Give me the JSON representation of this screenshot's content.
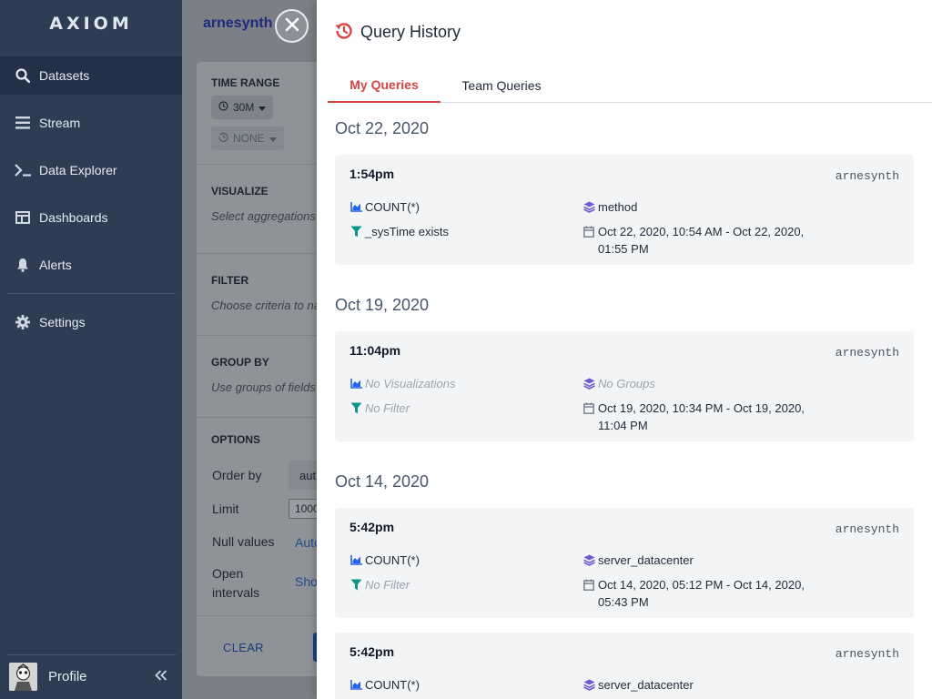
{
  "sidebar": {
    "logo": "AXIOM",
    "items": [
      {
        "label": "Datasets"
      },
      {
        "label": "Stream"
      },
      {
        "label": "Data Explorer"
      },
      {
        "label": "Dashboards"
      },
      {
        "label": "Alerts"
      },
      {
        "label": "Settings"
      }
    ],
    "profile_label": "Profile"
  },
  "main": {
    "dataset_title": "arnesynth",
    "sections": {
      "time_range": {
        "heading": "TIME RANGE",
        "range_value": "30M",
        "compare_value": "NONE"
      },
      "visualize": {
        "heading": "VISUALIZE",
        "hint": "Select aggregations"
      },
      "filter": {
        "heading": "FILTER",
        "hint": "Choose criteria to na"
      },
      "group_by": {
        "heading": "GROUP BY",
        "hint": "Use groups of fields"
      },
      "options": {
        "heading": "OPTIONS",
        "order_by_label": "Order by",
        "order_by_value": "aut",
        "limit_label": "Limit",
        "limit_value": "1000",
        "null_values_label": "Null values",
        "null_values_value": "Auto",
        "open_intervals_label": "Open intervals",
        "open_intervals_value": "Sho"
      }
    },
    "clear_label": "CLEAR"
  },
  "drawer": {
    "title": "Query History",
    "tabs": [
      {
        "label": "My Queries",
        "active": true
      },
      {
        "label": "Team Queries",
        "active": false
      }
    ],
    "groups": [
      {
        "date": "Oct 22, 2020",
        "entries": [
          {
            "time": "1:54pm",
            "user": "arnesynth",
            "visualization": "COUNT(*)",
            "group": "method",
            "filter": "_sysTime exists",
            "range": "Oct 22, 2020, 10:54 AM - Oct 22, 2020, 01:55 PM"
          }
        ]
      },
      {
        "date": "Oct 19, 2020",
        "entries": [
          {
            "time": "11:04pm",
            "user": "arnesynth",
            "visualization": "No Visualizations",
            "group": "No Groups",
            "filter": "No Filter",
            "range": "Oct 19, 2020, 10:34 PM - Oct 19, 2020, 11:04 PM"
          }
        ]
      },
      {
        "date": "Oct 14, 2020",
        "entries": [
          {
            "time": "5:42pm",
            "user": "arnesynth",
            "visualization": "COUNT(*)",
            "group": "server_datacenter",
            "filter": "No Filter",
            "range": "Oct 14, 2020, 05:12 PM - Oct 14, 2020, 05:43 PM"
          },
          {
            "time": "5:42pm",
            "user": "arnesynth",
            "visualization": "COUNT(*)",
            "group": "server_datacenter"
          }
        ]
      }
    ]
  },
  "colors": {
    "sidebar_bg": "#2e3d54",
    "sidebar_active": "#233047",
    "accent_red": "#d64545",
    "icon_blue": "#2563eb",
    "icon_green": "#0f9488",
    "icon_purple": "#6d5bd0"
  },
  "icons": {
    "datasets": "search-icon",
    "stream": "stream-icon",
    "data_explorer": "terminal-icon",
    "dashboards": "dashboard-icon",
    "alerts": "bell-icon",
    "settings": "gear-icon",
    "history": "history-icon",
    "close": "close-icon",
    "collapse": "double-chevron-left-icon"
  }
}
